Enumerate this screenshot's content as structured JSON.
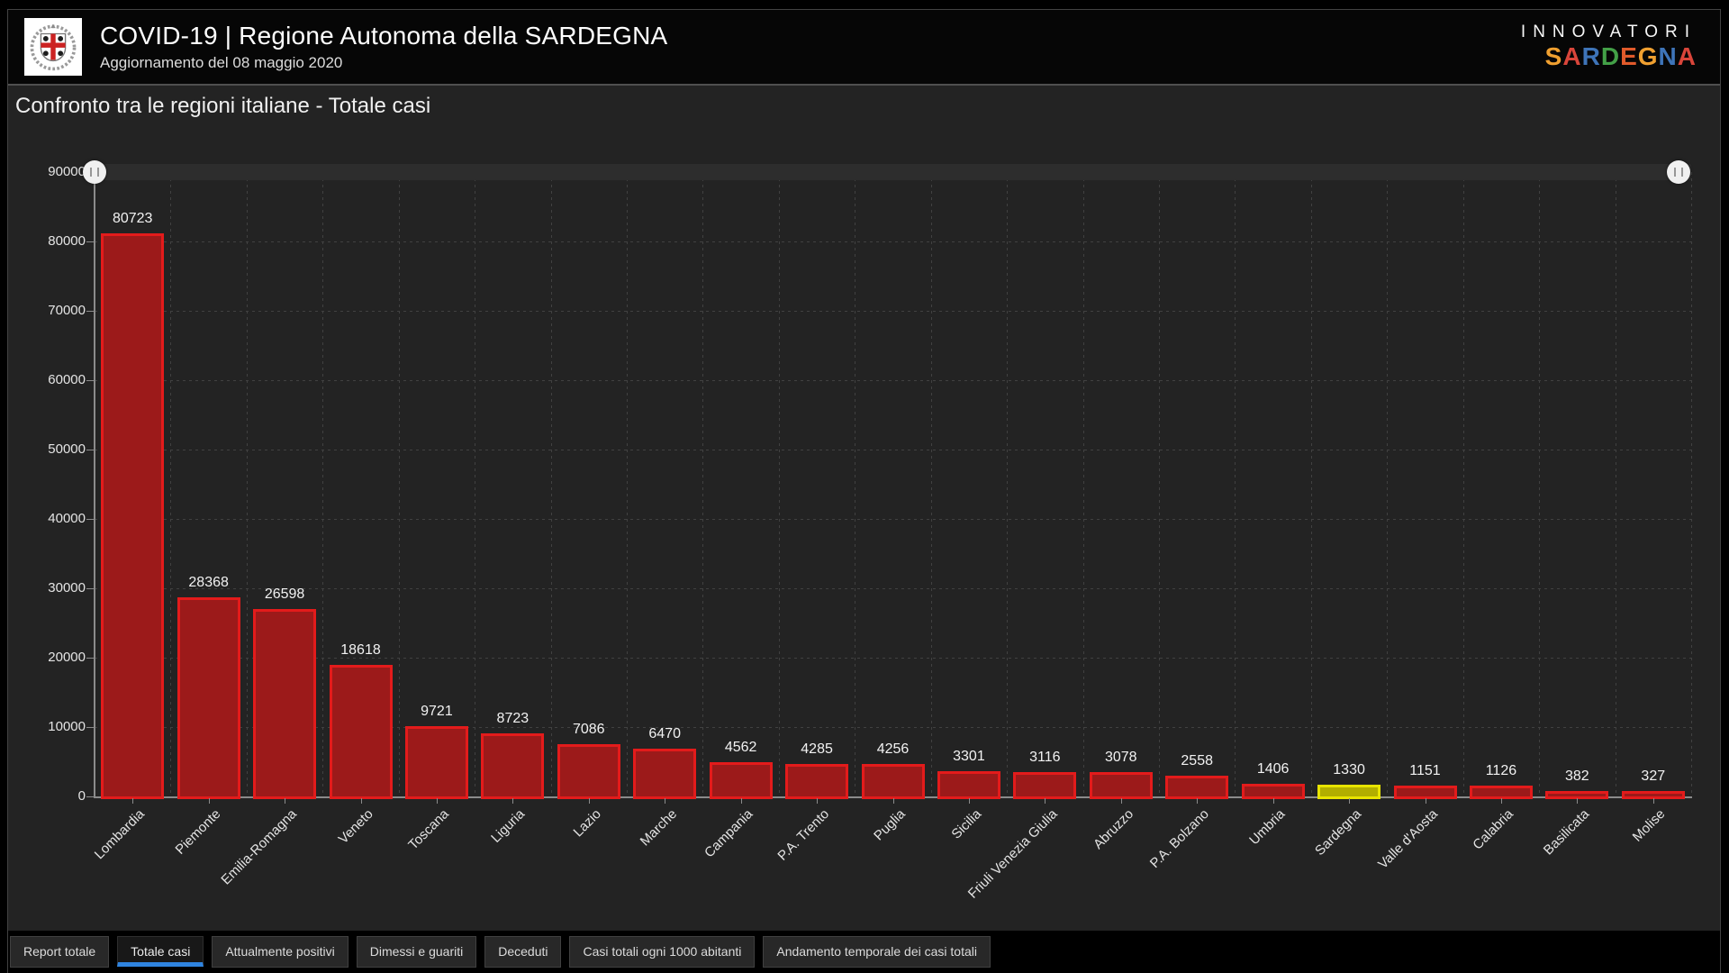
{
  "header": {
    "title": "COVID-19 | Regione Autonoma della SARDEGNA",
    "subtitle": "Aggiornamento del 08 maggio 2020",
    "logo_icon": "sardegna-coat-of-arms-icon",
    "brand": {
      "line1": "INNOVATORI",
      "line2_letters": [
        {
          "ch": "S",
          "color": "#f0a030"
        },
        {
          "ch": "A",
          "color": "#d9453a"
        },
        {
          "ch": "R",
          "color": "#3e74b8"
        },
        {
          "ch": "D",
          "color": "#43a047"
        },
        {
          "ch": "E",
          "color": "#e05a2b"
        },
        {
          "ch": "G",
          "color": "#f0a030"
        },
        {
          "ch": "N",
          "color": "#3e74b8"
        },
        {
          "ch": "A",
          "color": "#d9453a"
        }
      ]
    }
  },
  "chart": {
    "title": "Confronto tra le regioni italiane - Totale casi"
  },
  "chart_data": {
    "type": "bar",
    "title": "Confronto tra le regioni italiane - Totale casi",
    "categories": [
      "Lombardia",
      "Piemonte",
      "Emilia-Romagna",
      "Veneto",
      "Toscana",
      "Liguria",
      "Lazio",
      "Marche",
      "Campania",
      "P.A. Trento",
      "Puglia",
      "Sicilia",
      "Friuli Venezia Giulia",
      "Abruzzo",
      "P.A. Bolzano",
      "Umbria",
      "Sardegna",
      "Valle d'Aosta",
      "Calabria",
      "Basilicata",
      "Molise"
    ],
    "values": [
      80723,
      28368,
      26598,
      18618,
      9721,
      8723,
      7086,
      6470,
      4562,
      4285,
      4256,
      3301,
      3116,
      3078,
      2558,
      1406,
      1330,
      1151,
      1126,
      382,
      327
    ],
    "highlight_index": 16,
    "highlight_category": "Sardegna",
    "xlabel": "",
    "ylabel": "",
    "ylim": [
      0,
      90000
    ],
    "yticks": [
      0,
      10000,
      20000,
      30000,
      40000,
      50000,
      60000,
      70000,
      80000,
      90000
    ],
    "grid": true,
    "legend": "none",
    "x_label_rotation_deg": 45,
    "value_labels": true,
    "colors": {
      "bar_fill": "#9c1a1a",
      "bar_border": "#e31b1b",
      "highlight_fill": "#b2ae00",
      "highlight_border": "#e8e400",
      "value_label": "#f2f2f2",
      "axis_label": "#e4e4e4",
      "active_tab_underline": "#2f84e0"
    },
    "data_zoom_slider": {
      "present": true,
      "handle_icon": "range-drag-handle-icon"
    }
  },
  "tabs": [
    {
      "label": "Report totale",
      "active": false
    },
    {
      "label": "Totale casi",
      "active": true
    },
    {
      "label": "Attualmente positivi",
      "active": false
    },
    {
      "label": "Dimessi e guariti",
      "active": false
    },
    {
      "label": "Deceduti",
      "active": false
    },
    {
      "label": "Casi totali ogni 1000 abitanti",
      "active": false
    },
    {
      "label": "Andamento temporale dei casi totali",
      "active": false
    }
  ]
}
